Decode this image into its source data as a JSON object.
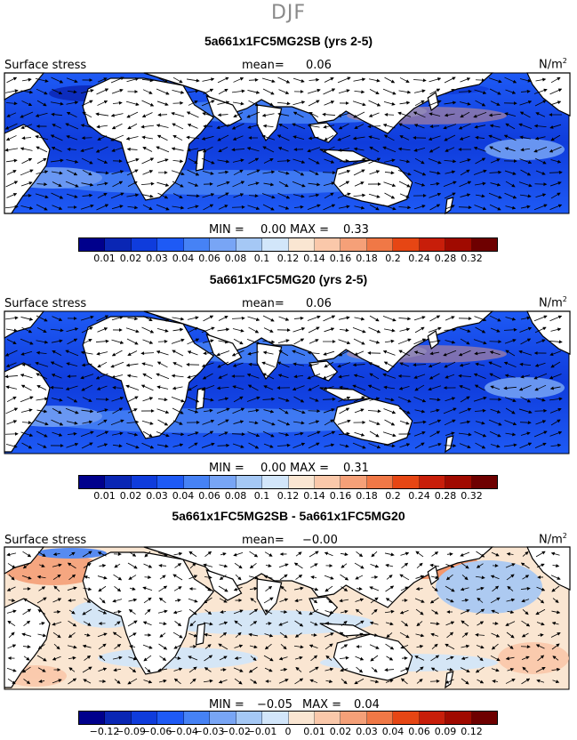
{
  "season": "DJF",
  "colors": {
    "stress_palette": [
      "#00008c",
      "#0a26b4",
      "#0f3cdc",
      "#1e5af5",
      "#4682f5",
      "#78a5f5",
      "#a5c8f5",
      "#d2e6fa",
      "#fae6d2",
      "#fac8aa",
      "#f5a078",
      "#f07846",
      "#e64614",
      "#c81e0a",
      "#a00a00",
      "#6e0000"
    ],
    "diff_palette": [
      "#00008c",
      "#0a26b4",
      "#0f3cdc",
      "#1e5af5",
      "#4682f5",
      "#78a5f5",
      "#a5c8f5",
      "#d2e6fa",
      "#fae6d2",
      "#fac8aa",
      "#f5a078",
      "#f07846",
      "#e64614",
      "#c81e0a",
      "#a00a00",
      "#6e0000"
    ],
    "land": "#ffffff",
    "coast": "#000000"
  },
  "panels": [
    {
      "title": "5a661x1FC5MG2SB (yrs 2-5)",
      "field_label": "Surface stress",
      "mean_label": "mean=",
      "mean_value": "0.06",
      "unit": "N/m",
      "unit_sup": "2",
      "min_label": "MIN =",
      "min_value": "0.00",
      "max_label": "MAX =",
      "max_value": "0.33",
      "colorbar_ticks": [
        "0.01",
        "0.02",
        "0.03",
        "0.04",
        "0.06",
        "0.08",
        "0.1",
        "0.12",
        "0.14",
        "0.16",
        "0.18",
        "0.2",
        "0.24",
        "0.28",
        "0.32"
      ]
    },
    {
      "title": "5a661x1FC5MG20 (yrs 2-5)",
      "field_label": "Surface stress",
      "mean_label": "mean=",
      "mean_value": "0.06",
      "unit": "N/m",
      "unit_sup": "2",
      "min_label": "MIN =",
      "min_value": "0.00",
      "max_label": "MAX =",
      "max_value": "0.31",
      "colorbar_ticks": [
        "0.01",
        "0.02",
        "0.03",
        "0.04",
        "0.06",
        "0.08",
        "0.1",
        "0.12",
        "0.14",
        "0.16",
        "0.18",
        "0.2",
        "0.24",
        "0.28",
        "0.32"
      ]
    },
    {
      "title": "5a661x1FC5MG2SB - 5a661x1FC5MG20",
      "field_label": "Surface stress",
      "mean_label": "mean=",
      "mean_value": "−0.00",
      "unit": "N/m",
      "unit_sup": "2",
      "min_label": "MIN =",
      "min_value": "−0.05",
      "max_label": "MAX =",
      "max_value": "0.04",
      "colorbar_ticks": [
        "−0.12",
        "−0.09",
        "−0.06",
        "−0.04",
        "−0.03",
        "−0.02",
        "−0.01",
        "0",
        "0.01",
        "0.02",
        "0.03",
        "0.04",
        "0.06",
        "0.09",
        "0.12"
      ]
    }
  ]
}
